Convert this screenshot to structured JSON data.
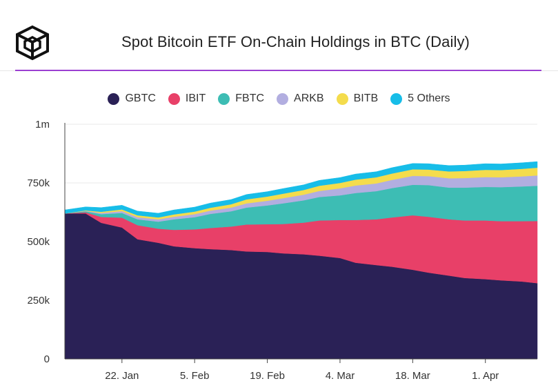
{
  "header": {
    "title": "Spot Bitcoin ETF On-Chain Holdings in BTC (Daily)",
    "logo_icon": "cube-logo-icon"
  },
  "colors": {
    "accent_rule": "#9b3fd1",
    "grid": "#e9e9e9",
    "axis": "#444444"
  },
  "chart_data": {
    "type": "area",
    "stacked": true,
    "title": "Spot Bitcoin ETF On-Chain Holdings in BTC (Daily)",
    "xlabel": "",
    "ylabel": "",
    "ylim": [
      0,
      1000000
    ],
    "y_ticks": [
      {
        "value": 0,
        "label": "0"
      },
      {
        "value": 250000,
        "label": "250k"
      },
      {
        "value": 500000,
        "label": "500k"
      },
      {
        "value": 750000,
        "label": "750k"
      },
      {
        "value": 1000000,
        "label": "1m"
      }
    ],
    "xlim": [
      "2024-01-11",
      "2024-04-11"
    ],
    "x_ticks": [
      {
        "date": "2024-01-22",
        "label": "22. Jan"
      },
      {
        "date": "2024-02-05",
        "label": "5. Feb"
      },
      {
        "date": "2024-02-19",
        "label": "19. Feb"
      },
      {
        "date": "2024-03-04",
        "label": "4. Mar"
      },
      {
        "date": "2024-03-18",
        "label": "18. Mar"
      },
      {
        "date": "2024-04-01",
        "label": "1. Apr"
      }
    ],
    "grid": "horizontal",
    "legend_position": "top-center",
    "x": [
      "2024-01-11",
      "2024-01-15",
      "2024-01-18",
      "2024-01-22",
      "2024-01-25",
      "2024-01-29",
      "2024-02-01",
      "2024-02-05",
      "2024-02-08",
      "2024-02-12",
      "2024-02-15",
      "2024-02-19",
      "2024-02-22",
      "2024-02-26",
      "2024-02-29",
      "2024-03-04",
      "2024-03-07",
      "2024-03-11",
      "2024-03-14",
      "2024-03-18",
      "2024-03-21",
      "2024-03-25",
      "2024-03-28",
      "2024-04-01",
      "2024-04-04",
      "2024-04-08",
      "2024-04-11"
    ],
    "series": [
      {
        "name": "GBTC",
        "color": "#2a2156",
        "values": [
          620000,
          620000,
          580000,
          560000,
          510000,
          495000,
          480000,
          472000,
          468000,
          464000,
          458000,
          456000,
          450000,
          446000,
          440000,
          430000,
          410000,
          400000,
          393000,
          380000,
          368000,
          355000,
          345000,
          340000,
          335000,
          330000,
          323000
        ]
      },
      {
        "name": "IBIT",
        "color": "#e84068",
        "values": [
          0,
          5000,
          25000,
          42000,
          60000,
          60000,
          70000,
          80000,
          90000,
          100000,
          115000,
          118000,
          125000,
          135000,
          150000,
          162000,
          182000,
          195000,
          210000,
          232000,
          238000,
          240000,
          245000,
          250000,
          252000,
          257000,
          265000
        ]
      },
      {
        "name": "FBTC",
        "color": "#3dbdb4",
        "values": [
          0,
          4000,
          12000,
          20000,
          25000,
          30000,
          45000,
          52000,
          60000,
          65000,
          72000,
          80000,
          88000,
          95000,
          100000,
          105000,
          115000,
          120000,
          125000,
          130000,
          135000,
          135000,
          140000,
          143000,
          145000,
          148000,
          150000
        ]
      },
      {
        "name": "ARKB",
        "color": "#b2aee0",
        "values": [
          0,
          2000,
          5000,
          8000,
          9000,
          10000,
          11000,
          13000,
          14000,
          16000,
          18000,
          20000,
          22000,
          24000,
          26000,
          30000,
          32000,
          33000,
          35000,
          38000,
          38000,
          40000,
          41000,
          42000,
          42000,
          43000,
          44000
        ]
      },
      {
        "name": "BITB",
        "color": "#f4dc4c",
        "values": [
          0,
          2000,
          5000,
          7000,
          8000,
          8000,
          10000,
          11000,
          12000,
          14000,
          17000,
          18000,
          19000,
          20000,
          22000,
          23000,
          25000,
          26000,
          27000,
          28000,
          28000,
          29000,
          30000,
          31000,
          31000,
          32000,
          33000
        ]
      },
      {
        "name": "5 Others",
        "color": "#17bde8",
        "values": [
          15000,
          15000,
          18000,
          18000,
          18000,
          18000,
          19000,
          19000,
          20000,
          20000,
          21000,
          21000,
          22000,
          22000,
          23000,
          23000,
          24000,
          24000,
          25000,
          25000,
          25000,
          25000,
          25000,
          26000,
          26000,
          26000,
          26000
        ]
      }
    ]
  }
}
